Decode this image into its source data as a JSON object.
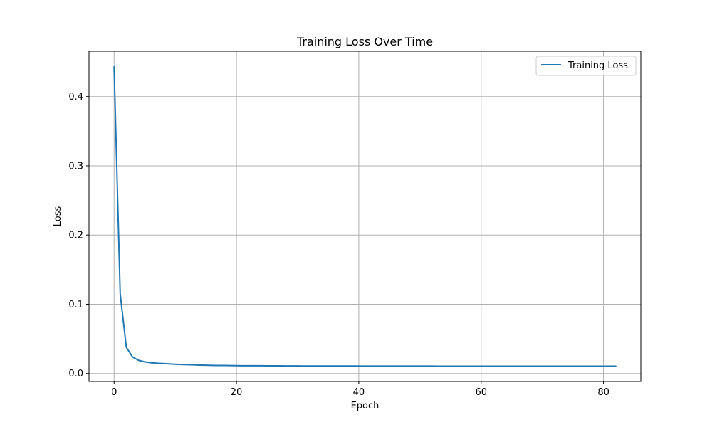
{
  "chart_data": {
    "type": "line",
    "title": "Training Loss Over Time",
    "xlabel": "Epoch",
    "ylabel": "Loss",
    "xlim": [
      -4.1,
      86.1
    ],
    "ylim": [
      -0.0116,
      0.4655
    ],
    "xticks": [
      0,
      20,
      40,
      60,
      80
    ],
    "yticks": [
      0.0,
      0.1,
      0.2,
      0.3,
      0.4
    ],
    "xtick_labels": [
      "0",
      "20",
      "40",
      "60",
      "80"
    ],
    "ytick_labels": [
      "0.0",
      "0.1",
      "0.2",
      "0.3",
      "0.4"
    ],
    "grid": true,
    "legend_position": "top-right",
    "series": [
      {
        "name": "Training Loss",
        "color": "#1f77b4",
        "x": [
          0,
          1,
          2,
          3,
          4,
          5,
          6,
          7,
          8,
          9,
          10,
          11,
          12,
          13,
          14,
          15,
          16,
          17,
          18,
          19,
          20,
          21,
          22,
          23,
          24,
          25,
          26,
          27,
          28,
          29,
          30,
          31,
          32,
          33,
          34,
          35,
          36,
          37,
          38,
          39,
          40,
          41,
          42,
          43,
          44,
          45,
          46,
          47,
          48,
          49,
          50,
          51,
          52,
          53,
          54,
          55,
          56,
          57,
          58,
          59,
          60,
          61,
          62,
          63,
          64,
          65,
          66,
          67,
          68,
          69,
          70,
          71,
          72,
          73,
          74,
          75,
          76,
          77,
          78,
          79,
          80,
          81,
          82
        ],
        "y": [
          0.443,
          0.115,
          0.038,
          0.024,
          0.019,
          0.0168,
          0.0155,
          0.0148,
          0.0143,
          0.0138,
          0.0134,
          0.013,
          0.0127,
          0.0124,
          0.0121,
          0.0119,
          0.0117,
          0.0116,
          0.0115,
          0.0114,
          0.0113,
          0.0112,
          0.0112,
          0.0111,
          0.0111,
          0.011,
          0.011,
          0.011,
          0.0109,
          0.0109,
          0.0109,
          0.0108,
          0.0108,
          0.0108,
          0.0108,
          0.0107,
          0.0107,
          0.0107,
          0.0107,
          0.0107,
          0.0107,
          0.0106,
          0.0106,
          0.0106,
          0.0106,
          0.0106,
          0.0106,
          0.0106,
          0.0106,
          0.0106,
          0.0106,
          0.0106,
          0.0106,
          0.0105,
          0.0105,
          0.0105,
          0.0105,
          0.0105,
          0.0105,
          0.0105,
          0.0105,
          0.0105,
          0.0105,
          0.0105,
          0.0105,
          0.0105,
          0.0105,
          0.0105,
          0.0105,
          0.0105,
          0.0105,
          0.0105,
          0.0105,
          0.0105,
          0.0105,
          0.0105,
          0.0105,
          0.0105,
          0.0105,
          0.0105,
          0.0105,
          0.0105,
          0.0105
        ]
      }
    ]
  }
}
